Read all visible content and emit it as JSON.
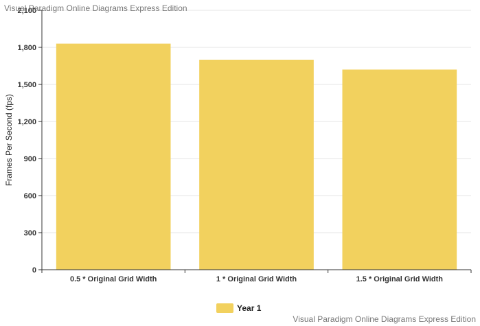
{
  "watermark": {
    "top": "Visual Paradigm Online Diagrams Express Edition",
    "bottom": "Visual Paradigm Online Diagrams Express Edition"
  },
  "chart_data": {
    "type": "bar",
    "categories": [
      "0.5 * Original Grid Width",
      "1 * Original Grid Width",
      "1.5 * Original Grid Width"
    ],
    "series": [
      {
        "name": "Year 1",
        "values": [
          1830,
          1700,
          1620
        ],
        "color": "#f2d15e"
      }
    ],
    "title": "",
    "xlabel": "",
    "ylabel": "Frames Per Second (fps)",
    "ylim": [
      0,
      2100
    ],
    "yticks": [
      0,
      300,
      600,
      900,
      1200,
      1500,
      1800,
      2100
    ],
    "ytick_labels": [
      "0",
      "300",
      "600",
      "900",
      "1,200",
      "1,500",
      "1,800",
      "2,100"
    ],
    "grid": true,
    "legend_position": "bottom-center",
    "colors": {
      "gridline": "#e6e6e6",
      "axis": "#333333"
    }
  }
}
